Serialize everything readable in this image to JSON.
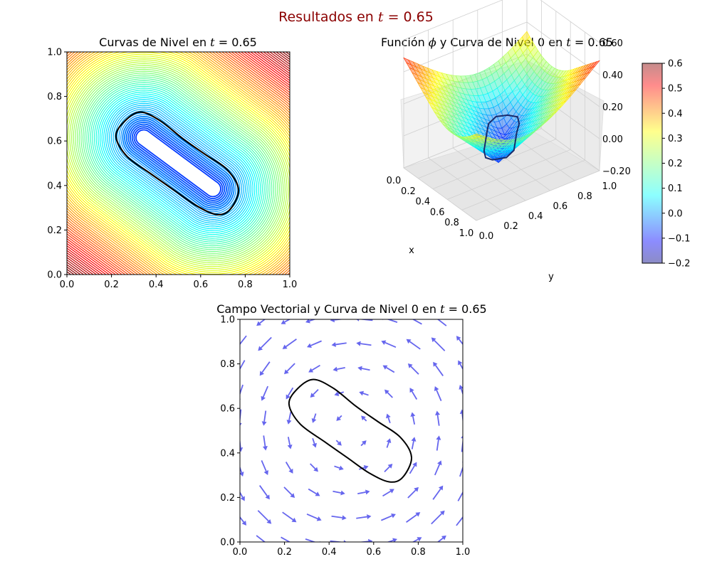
{
  "figure": {
    "suptitle_prefix": "Resultados en ",
    "suptitle_var": "t",
    "suptitle_eq": " = 0.65",
    "title_color": "#8b0000"
  },
  "chart_data": [
    {
      "type": "contour",
      "title_prefix": "Curvas de Nivel en ",
      "title_var": "t",
      "title_eq": " = 0.65",
      "xlim": [
        0,
        1
      ],
      "ylim": [
        0,
        1
      ],
      "xticks": [
        "0.0",
        "0.2",
        "0.4",
        "0.6",
        "0.8",
        "1.0"
      ],
      "yticks": [
        "0.0",
        "0.2",
        "0.4",
        "0.6",
        "0.8",
        "1.0"
      ],
      "colormap": "jet",
      "levels_range": [
        -0.2,
        0.6
      ],
      "zero_level_color": "#000000",
      "zero_level_curve": [
        [
          0.22,
          0.62
        ],
        [
          0.26,
          0.69
        ],
        [
          0.33,
          0.73
        ],
        [
          0.42,
          0.69
        ],
        [
          0.52,
          0.61
        ],
        [
          0.62,
          0.54
        ],
        [
          0.72,
          0.47
        ],
        [
          0.77,
          0.38
        ],
        [
          0.73,
          0.29
        ],
        [
          0.67,
          0.27
        ],
        [
          0.58,
          0.31
        ],
        [
          0.48,
          0.38
        ],
        [
          0.38,
          0.45
        ],
        [
          0.27,
          0.53
        ]
      ]
    },
    {
      "type": "surface3d",
      "title_prefix": "Función ",
      "title_var": "ϕ",
      "title_eq": " y Curva de Nivel 0 en ",
      "title_var2": "t",
      "title_eq2": " = 0.65",
      "xlabel": "x",
      "ylabel": "y",
      "xticks": [
        "0.0",
        "0.2",
        "0.4",
        "0.6",
        "0.8",
        "1.0"
      ],
      "yticks": [
        "0.0",
        "0.2",
        "0.4",
        "0.6",
        "0.8",
        "1.0"
      ],
      "zticks": [
        "0.60",
        "0.40",
        "0.20",
        "0.00",
        "−0.20"
      ],
      "zlim": [
        -0.2,
        0.6
      ],
      "colormap": "jet",
      "colorbar": {
        "min": -0.2,
        "max": 0.6,
        "ticks": [
          "0.6",
          "0.5",
          "0.4",
          "0.3",
          "0.2",
          "0.1",
          "0.0",
          "−0.1",
          "−0.2"
        ]
      }
    },
    {
      "type": "quiver",
      "title_prefix": "Campo Vectorial y Curva de Nivel 0 en ",
      "title_var": "t",
      "title_eq": " = 0.65",
      "xlim": [
        0,
        1
      ],
      "ylim": [
        0,
        1
      ],
      "xticks": [
        "0.0",
        "0.2",
        "0.4",
        "0.6",
        "0.8",
        "1.0"
      ],
      "yticks": [
        "0.0",
        "0.2",
        "0.4",
        "0.6",
        "0.8",
        "1.0"
      ],
      "arrow_color": "#6666ee",
      "grid_n": 10,
      "field": "rotational vortex, counter-clockwise, magnitude growing outward",
      "zero_level_curve": [
        [
          0.22,
          0.62
        ],
        [
          0.26,
          0.69
        ],
        [
          0.33,
          0.73
        ],
        [
          0.42,
          0.69
        ],
        [
          0.52,
          0.61
        ],
        [
          0.62,
          0.54
        ],
        [
          0.72,
          0.47
        ],
        [
          0.77,
          0.38
        ],
        [
          0.73,
          0.29
        ],
        [
          0.67,
          0.27
        ],
        [
          0.58,
          0.31
        ],
        [
          0.48,
          0.38
        ],
        [
          0.38,
          0.45
        ],
        [
          0.27,
          0.53
        ]
      ]
    }
  ]
}
